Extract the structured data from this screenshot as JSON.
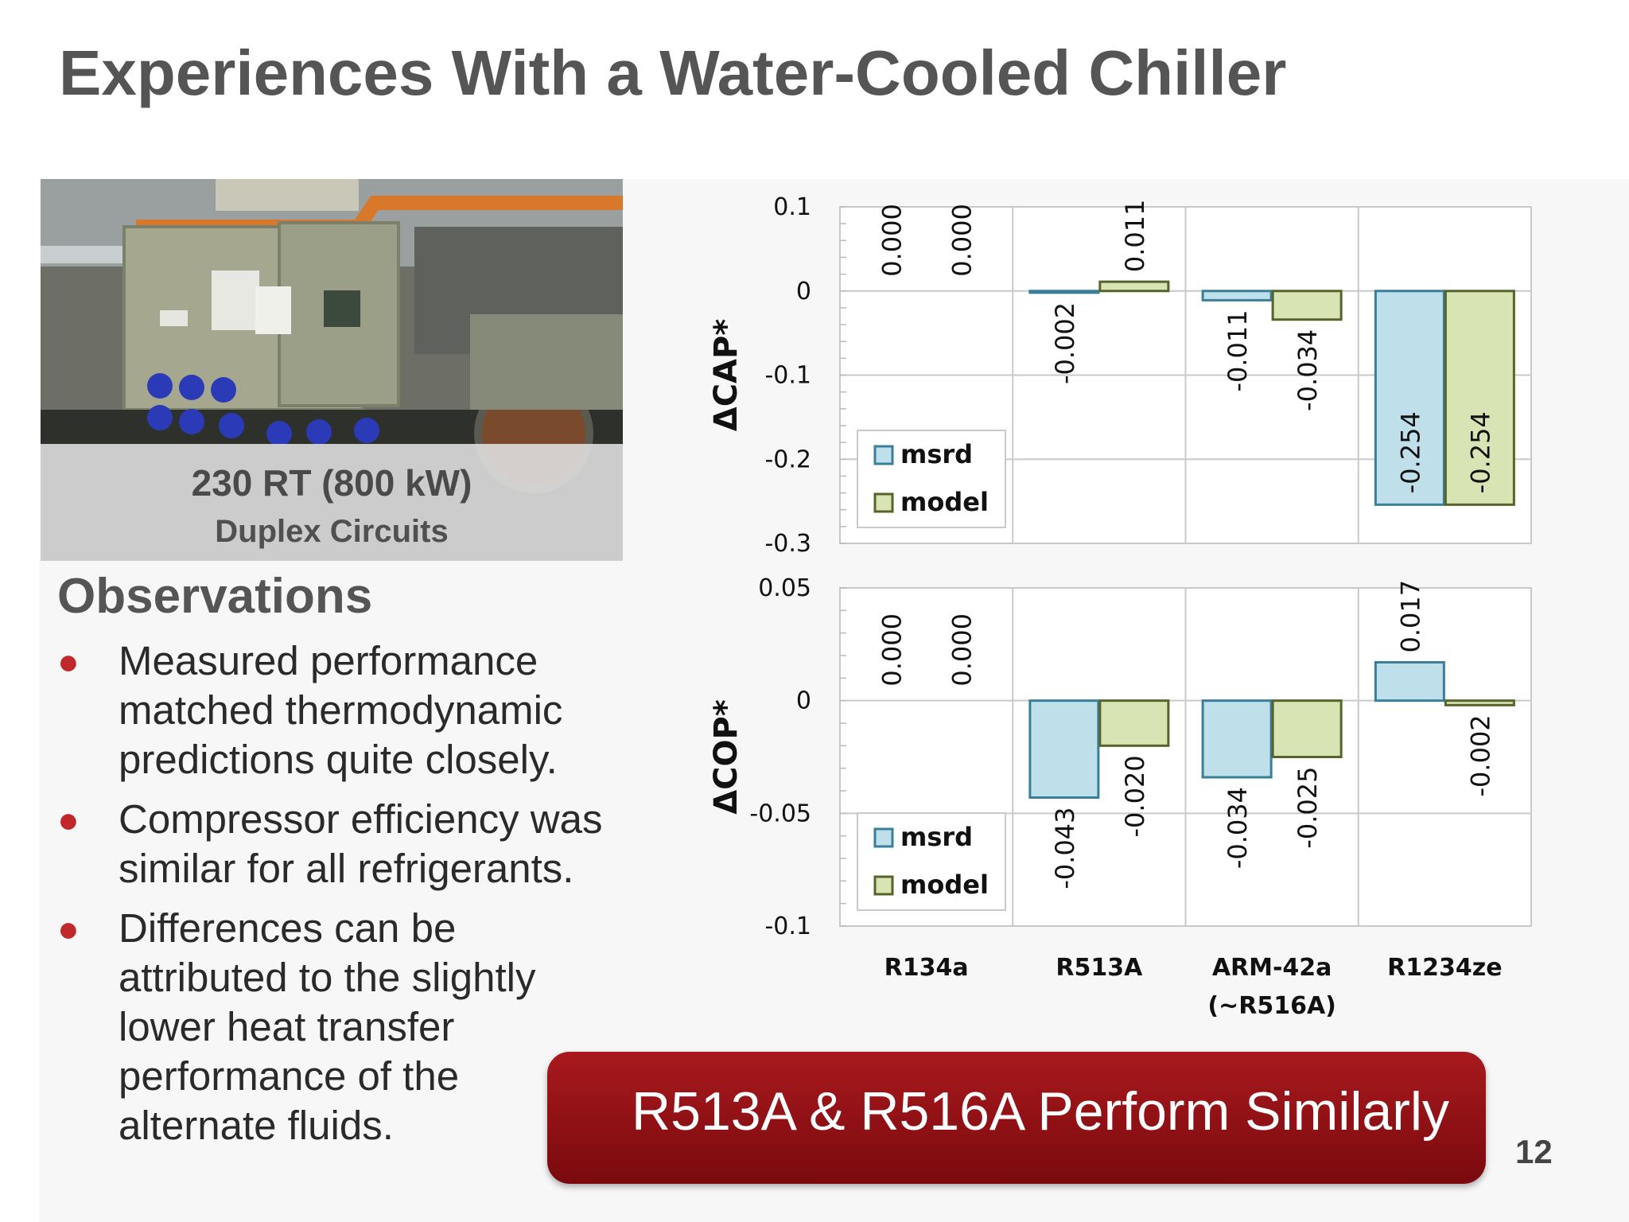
{
  "slide": {
    "title": "Experiences With a Water-Cooled Chiller",
    "page_number": "12"
  },
  "photo": {
    "caption_line1": "230 RT (800 kW)",
    "caption_line2": "Duplex Circuits"
  },
  "observations": {
    "heading": "Observations",
    "bullets": [
      "Measured performance matched thermodynamic predictions quite closely.",
      "Compressor efficiency was similar for all refrigerants.",
      "Differences can be attributed to the slightly lower heat transfer performance of the alternate fluids."
    ]
  },
  "banner": {
    "text": "R513A & R516A Perform Similarly"
  },
  "colors": {
    "msrd": "#bfe0ea",
    "msrd_border": "#3a7f9a",
    "model": "#d9e4b4",
    "model_border": "#56642a",
    "accent": "#a8191d"
  },
  "chart_data": [
    {
      "type": "bar",
      "ylabel": "ΔCAP*",
      "ylim": [
        -0.3,
        0.1
      ],
      "yticks": [
        "0.1",
        "0",
        "-0.1",
        "-0.2",
        "-0.3"
      ],
      "categories": [
        "R134a",
        "R513A",
        "ARM-42a",
        "R1234ze"
      ],
      "category_sublabels": [
        "",
        "",
        "(~R516A)",
        ""
      ],
      "series": [
        {
          "name": "msrd",
          "values": [
            0.0,
            -0.002,
            -0.011,
            -0.254
          ],
          "labels": [
            "0.000",
            "-0.002",
            "-0.011",
            "-0.254"
          ]
        },
        {
          "name": "model",
          "values": [
            0.0,
            0.011,
            -0.034,
            -0.254
          ],
          "labels": [
            "0.000",
            "0.011",
            "-0.034",
            "-0.254"
          ]
        }
      ],
      "legend": "bottom-left",
      "grid": true
    },
    {
      "type": "bar",
      "ylabel": "ΔCOP*",
      "ylim": [
        -0.1,
        0.05
      ],
      "yticks": [
        "0.05",
        "0",
        "-0.05",
        "-0.1"
      ],
      "categories": [
        "R134a",
        "R513A",
        "ARM-42a",
        "R1234ze"
      ],
      "category_sublabels": [
        "",
        "",
        "(~R516A)",
        ""
      ],
      "series": [
        {
          "name": "msrd",
          "values": [
            0.0,
            -0.043,
            -0.034,
            0.017
          ],
          "labels": [
            "0.000",
            "-0.043",
            "-0.034",
            "0.017"
          ]
        },
        {
          "name": "model",
          "values": [
            0.0,
            -0.02,
            -0.025,
            -0.002
          ],
          "labels": [
            "0.000",
            "-0.020",
            "-0.025",
            "-0.002"
          ]
        }
      ],
      "legend": "bottom-left",
      "grid": true
    }
  ]
}
